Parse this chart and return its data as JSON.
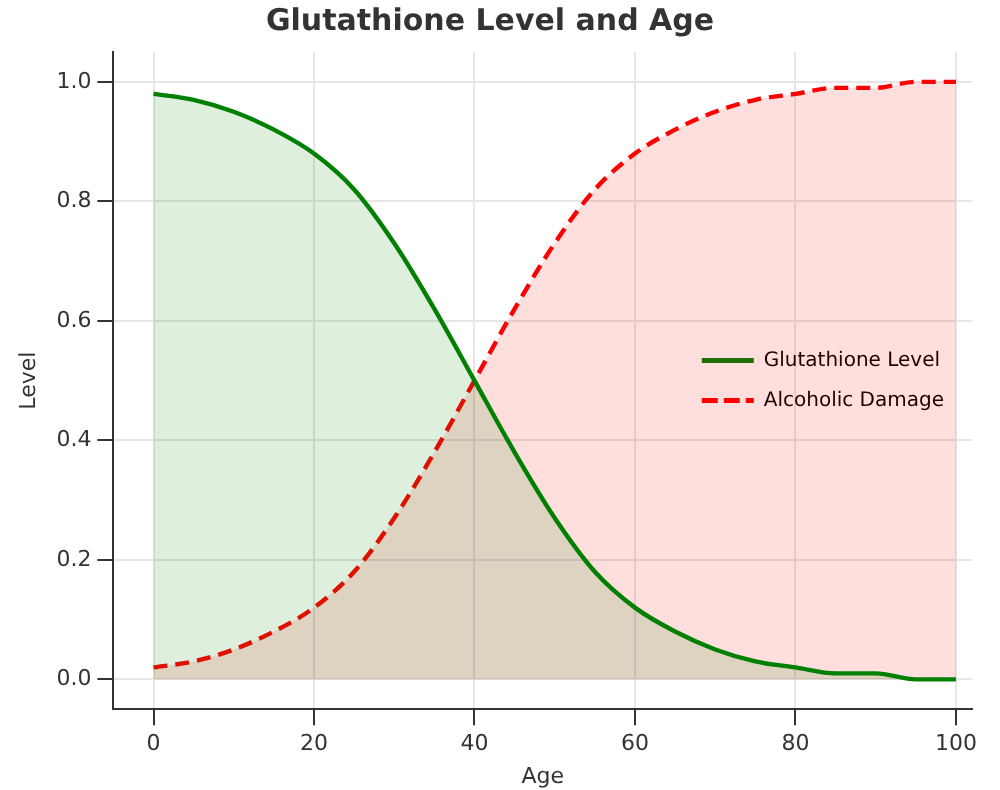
{
  "chart_data": {
    "type": "area",
    "title": "Glutathione Level and Age",
    "xlabel": "Age",
    "ylabel": "Level",
    "x": [
      0,
      5,
      10,
      15,
      20,
      25,
      30,
      35,
      40,
      45,
      50,
      55,
      60,
      65,
      70,
      75,
      80,
      85,
      90,
      95,
      100
    ],
    "series": [
      {
        "name": "Glutathione Level",
        "color": "#008000",
        "line_style": "solid",
        "values": [
          0.98,
          0.97,
          0.95,
          0.92,
          0.88,
          0.82,
          0.73,
          0.62,
          0.5,
          0.38,
          0.27,
          0.18,
          0.12,
          0.08,
          0.05,
          0.03,
          0.02,
          0.01,
          0.01,
          0.0,
          0.0
        ]
      },
      {
        "name": "Alcoholic Damage",
        "color": "#ff0000",
        "line_style": "dashed",
        "values": [
          0.02,
          0.03,
          0.05,
          0.08,
          0.12,
          0.18,
          0.27,
          0.38,
          0.5,
          0.62,
          0.73,
          0.82,
          0.88,
          0.92,
          0.95,
          0.97,
          0.98,
          0.99,
          0.99,
          1.0,
          1.0
        ]
      }
    ],
    "xlim": [
      -5,
      102
    ],
    "xticks": [
      0,
      20,
      40,
      60,
      80,
      100
    ],
    "ylim": [
      -0.05,
      1.05
    ],
    "yticks": [
      {
        "value": 0,
        "label": "0.0"
      },
      0.2,
      0.4,
      0.6,
      0.8,
      {
        "value": 1,
        "label": "1.0"
      }
    ],
    "grid": true,
    "legend": "center right"
  }
}
